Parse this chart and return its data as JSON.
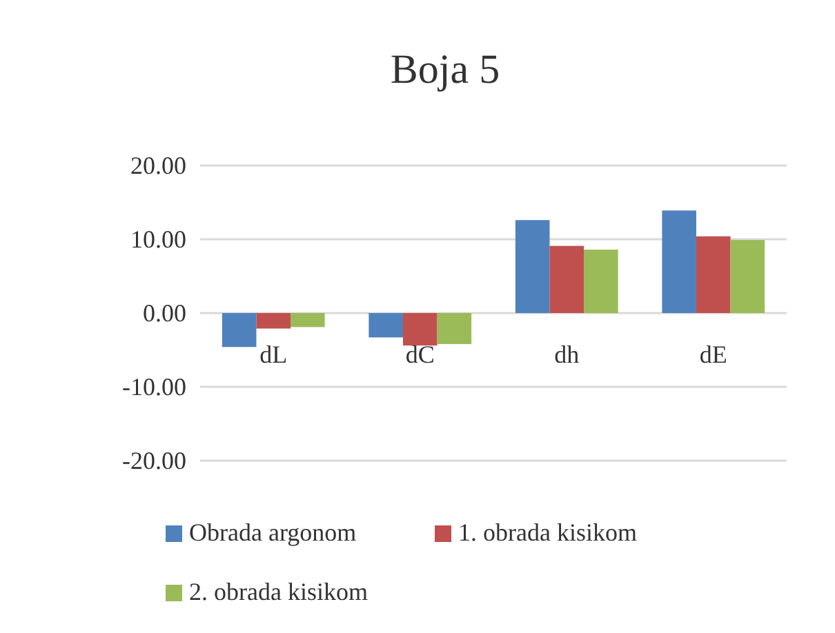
{
  "chart_data": {
    "type": "bar",
    "title": "Boja 5",
    "categories": [
      "dL",
      "dC",
      "dh",
      "dE"
    ],
    "series": [
      {
        "name": "Obrada argonom",
        "color": "#4f81bd",
        "values": [
          -4.6,
          -3.3,
          12.6,
          13.9
        ]
      },
      {
        "name": "1. obrada kisikom",
        "color": "#c0504d",
        "values": [
          -2.1,
          -4.4,
          9.1,
          10.4
        ]
      },
      {
        "name": "2. obrada kisikom",
        "color": "#9bbb59",
        "values": [
          -1.9,
          -4.2,
          8.6,
          9.9
        ]
      }
    ],
    "ylim": [
      -20,
      20
    ],
    "yticks": [
      {
        "value": -20,
        "label": "-20.00"
      },
      {
        "value": -10,
        "label": "-10.00"
      },
      {
        "value": 0,
        "label": "0.00"
      },
      {
        "value": 10,
        "label": "10.00"
      },
      {
        "value": 20,
        "label": "20.00"
      }
    ],
    "grid": "y",
    "legend": "bottom"
  }
}
